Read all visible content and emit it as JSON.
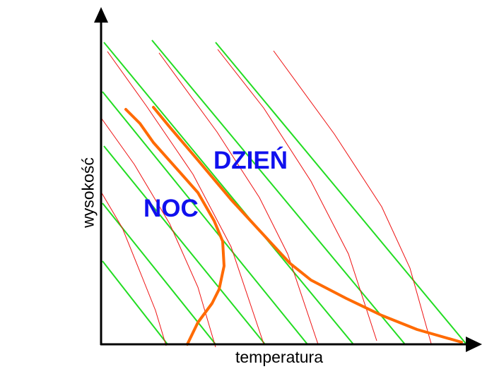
{
  "labels": {
    "day": "DZIEŃ",
    "night": "NOC",
    "y_axis": "wysokość",
    "x_axis": "temperatura"
  },
  "colors": {
    "dry_adiabat": "#22dd22",
    "moist_adiabat": "#ee1111",
    "profile": "#ff6a00",
    "label": "#1010ee"
  }
}
